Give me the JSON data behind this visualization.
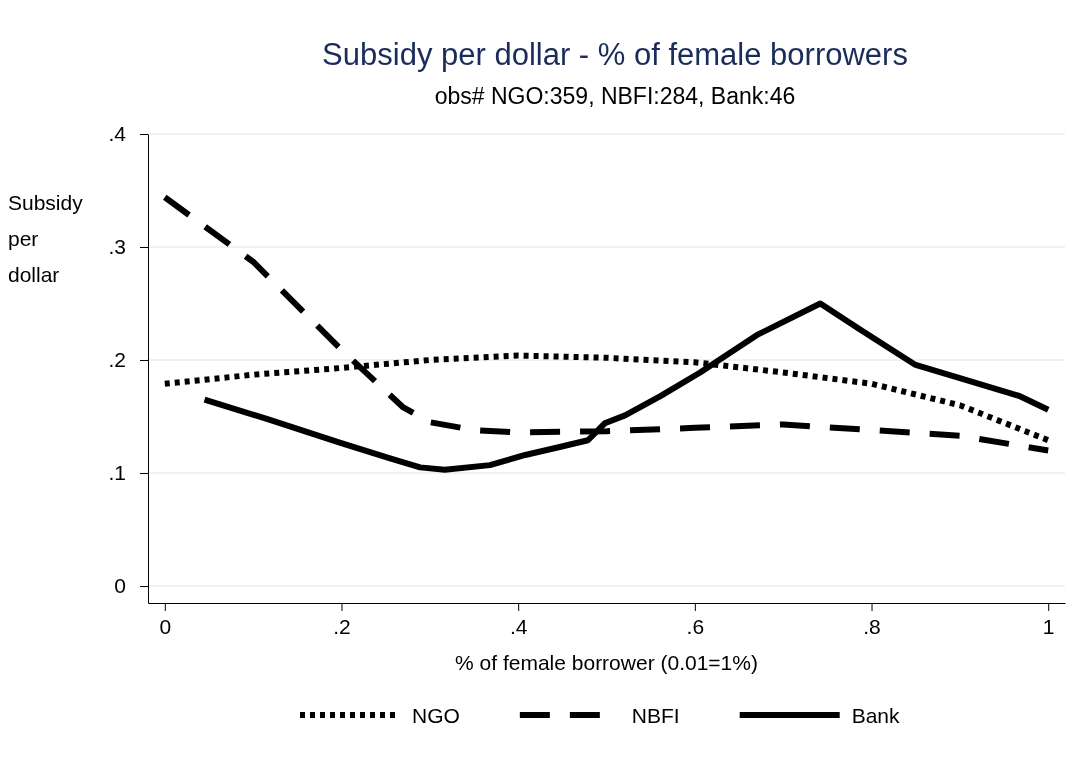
{
  "chart_data": {
    "type": "line",
    "title": "Subsidy per dollar - % of female borrowers",
    "subtitle": "obs# NGO:359, NBFI:284, Bank:46",
    "xlabel": "% of female borrower (0.01=1%)",
    "ylabel": "Subsidy per dollar",
    "xlim": [
      -0.019,
      1.019
    ],
    "ylim": [
      -0.015,
      0.4
    ],
    "xticks": [
      0,
      {
        "value": 0.2,
        "label": ".2"
      },
      {
        "value": 0.4,
        "label": ".4"
      },
      {
        "value": 0.6,
        "label": ".6"
      },
      {
        "value": 0.8,
        "label": ".8"
      },
      1
    ],
    "yticks": [
      0,
      {
        "value": 0.1,
        "label": ".1"
      },
      {
        "value": 0.2,
        "label": ".2"
      },
      {
        "value": 0.3,
        "label": ".3"
      },
      {
        "value": 0.4,
        "label": ".4"
      }
    ],
    "grid": "y",
    "legend": "bottom",
    "marker": "none",
    "series": [
      {
        "name": "NGO",
        "color": "#000000",
        "line_style": "dotted",
        "x": [
          0,
          0.1,
          0.2,
          0.3,
          0.4,
          0.5,
          0.6,
          0.7,
          0.8,
          0.9,
          1
        ],
        "values": [
          0.179,
          0.187,
          0.193,
          0.2,
          0.204,
          0.202,
          0.198,
          0.189,
          0.179,
          0.16,
          0.129
        ]
      },
      {
        "name": "NBFI",
        "color": "#000000",
        "line_style": "dashed",
        "x": [
          0,
          0.1,
          0.2,
          0.27,
          0.3,
          0.35,
          0.4,
          0.5,
          0.6,
          0.7,
          0.8,
          0.9,
          1
        ],
        "values": [
          0.344,
          0.287,
          0.209,
          0.158,
          0.145,
          0.138,
          0.136,
          0.137,
          0.14,
          0.143,
          0.138,
          0.133,
          0.12
        ]
      },
      {
        "name": "Bank",
        "color": "#000000",
        "line_style": "solid",
        "x": [
          0.045,
          0.119,
          0.198,
          0.255,
          0.289,
          0.317,
          0.368,
          0.408,
          0.447,
          0.479,
          0.498,
          0.521,
          0.561,
          0.606,
          0.67,
          0.742,
          0.787,
          0.849,
          0.9,
          0.968,
          1
        ],
        "values": [
          0.165,
          0.147,
          0.127,
          0.113,
          0.105,
          0.103,
          0.107,
          0.116,
          0.123,
          0.129,
          0.144,
          0.151,
          0.168,
          0.189,
          0.222,
          0.25,
          0.227,
          0.196,
          0.184,
          0.168,
          0.156
        ]
      }
    ]
  }
}
